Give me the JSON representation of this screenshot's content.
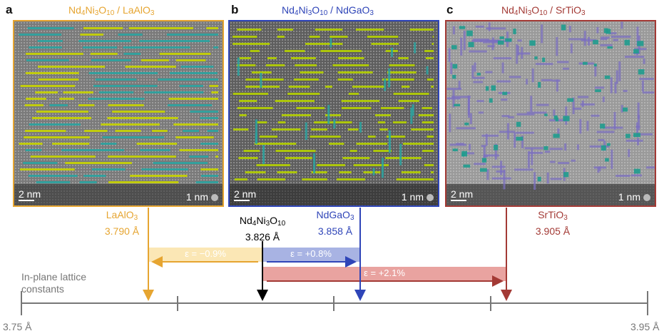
{
  "panels": [
    {
      "letter": "a",
      "film_formula": "Nd4Ni3O10",
      "substrate": "LaAlO3",
      "title_color": "#e6a531",
      "border_color": "#e6a531",
      "scale_left": "2 nm",
      "scale_right": "1 nm",
      "stripe_color": "#c8d400"
    },
    {
      "letter": "b",
      "film_formula": "Nd4Ni3O10",
      "substrate": "NdGaO3",
      "title_color": "#2f45b8",
      "border_color": "#2f45b8",
      "scale_left": "2 nm",
      "scale_right": "1 nm",
      "stripe_color": "#b5d000"
    },
    {
      "letter": "c",
      "film_formula": "Nd4Ni3O10",
      "substrate": "SrTiO3",
      "title_color": "#a33a35",
      "border_color": "#a33a35",
      "scale_left": "2 nm",
      "scale_right": "1 nm",
      "stripe_color": "#2a9c9a"
    }
  ],
  "materials": [
    {
      "name": "LaAlO3",
      "value": "3.790 Å",
      "color": "#e6a531"
    },
    {
      "name": "Nd4Ni3O10",
      "value": "3.826 Å",
      "color": "#000000"
    },
    {
      "name": "NdGaO3",
      "value": "3.858 Å",
      "color": "#2f45b8"
    },
    {
      "name": "SrTiO3",
      "value": "3.905 Å",
      "color": "#a33a35"
    }
  ],
  "strains": [
    {
      "label": "ε = −0.9%",
      "color": "#e6a531",
      "fill": "#fbe7b5"
    },
    {
      "label": "ε = +0.8%",
      "color": "#2f45b8",
      "fill": "#a8b3e3"
    },
    {
      "label": "ε = +2.1%",
      "color": "#a33a35",
      "fill": "#e9a3a0"
    }
  ],
  "axis": {
    "title_line1": "In-plane lattice",
    "title_line2": "constants",
    "min_label": "3.75 Å",
    "max_label": "3.95 Å"
  }
}
